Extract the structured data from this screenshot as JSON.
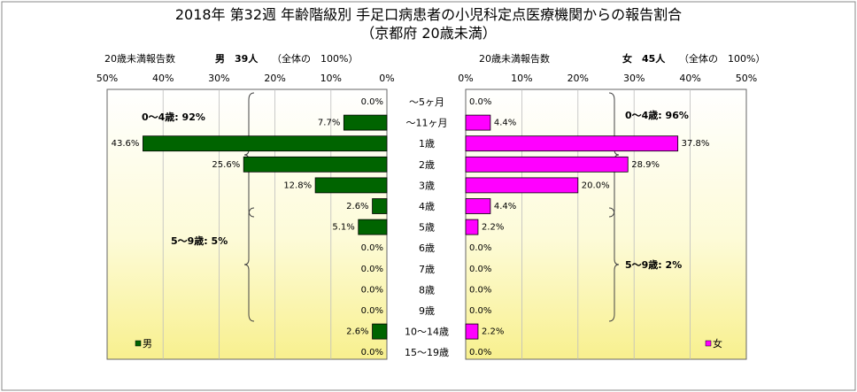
{
  "chart_data": {
    "type": "bar",
    "title": "2018年 第32週 年齢階級別 手足口病患者の小児科定点医療機関からの報告割合",
    "subtitle": "（京都府 20歳未満）",
    "categories": [
      "～5ヶ月",
      "～11ヶ月",
      "1歳",
      "2歳",
      "3歳",
      "4歳",
      "5歳",
      "6歳",
      "7歳",
      "8歳",
      "9歳",
      "10～14歳",
      "15～19歳"
    ],
    "xlim": [
      0,
      50
    ],
    "ticks": [
      "50%",
      "40%",
      "30%",
      "20%",
      "10%",
      "0%"
    ],
    "ticks_right": [
      "0%",
      "10%",
      "20%",
      "30%",
      "40%",
      "50%"
    ],
    "grid": true,
    "series": [
      {
        "name": "男",
        "header_label": "20歳未満報告数",
        "header_count": "男　39人",
        "header_note": "（全体の　100%）",
        "color": "#006400",
        "values": [
          0.0,
          7.7,
          43.6,
          25.6,
          12.8,
          2.6,
          5.1,
          0.0,
          0.0,
          0.0,
          0.0,
          2.6,
          0.0
        ],
        "value_labels": [
          "0.0%",
          "7.7%",
          "43.6%",
          "25.6%",
          "12.8%",
          "2.6%",
          "5.1%",
          "0.0%",
          "0.0%",
          "0.0%",
          "0.0%",
          "2.6%",
          "0.0%"
        ],
        "brace_labels": [
          "0～4歳: 92%",
          "5～9歳: 5%"
        ]
      },
      {
        "name": "女",
        "header_label": "20歳未満報告数",
        "header_count": "女　45人",
        "header_note": "（全体の　100%）",
        "color": "#ff00ff",
        "values": [
          0.0,
          4.4,
          37.8,
          28.9,
          20.0,
          4.4,
          2.2,
          0.0,
          0.0,
          0.0,
          0.0,
          2.2,
          0.0
        ],
        "value_labels": [
          "0.0%",
          "4.4%",
          "37.8%",
          "28.9%",
          "20.0%",
          "4.4%",
          "2.2%",
          "0.0%",
          "0.0%",
          "0.0%",
          "0.0%",
          "2.2%",
          "0.0%"
        ],
        "brace_labels": [
          "0～4歳: 96%",
          "5～9歳: 2%"
        ]
      }
    ]
  }
}
